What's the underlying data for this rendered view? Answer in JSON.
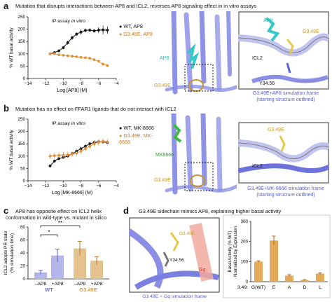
{
  "panels": {
    "a": {
      "label": "a",
      "title": "Mutation that disrupts interactions between AP8 and ICL2, reverses AP8 signaling effect in in vitro assays",
      "assay": "IP assay in vitro",
      "legend": [
        "WT, AP8",
        "G3.49E, AP8"
      ],
      "struct_labels": [
        "AP8",
        "G3.49E",
        "AP8",
        "G3.49E",
        "ICL2",
        "Y34.56"
      ],
      "sim_caption_1": "G3.49E+AP8 simulation frame",
      "sim_caption_2": "(starting structure outlined)"
    },
    "b": {
      "label": "b",
      "title": "Mutation has no effect on FFAR1 ligands that do not interact with ICL2",
      "assay": "IP assay in vitro",
      "legend": [
        "WT, MK-8666",
        "G3.49E, MK-8666"
      ],
      "struct_labels": [
        "MK8666",
        "G3.49E",
        "G3.49E",
        "ICL2"
      ],
      "sim_caption_1": "G3.49E+MK-8666 simulation frame",
      "sim_caption_2": "(starting structure outlined)"
    },
    "c": {
      "label": "c",
      "title_1": "AP8 has opposite effect on ICL2 helix",
      "title_2": "conformation in wild-type vs. mutant in silico",
      "sig": [
        "*",
        "**"
      ]
    },
    "d": {
      "label": "d",
      "title": "G3.49E sidechain mimics AP8, explaining higher basal activity",
      "struct_labels": [
        "G3.49E",
        "Y34.56",
        "Gq"
      ],
      "sim_caption": "G3.49E + Gq simulation frame"
    }
  },
  "chart_data": [
    {
      "type": "line",
      "id": "a",
      "xlabel": "Log [AP8] (M)",
      "ylabel": "% WT basal activity",
      "xlim": [
        -14,
        -4
      ],
      "ylim": [
        0,
        250
      ],
      "xticks": [
        -14,
        -12,
        -10,
        -8,
        -6,
        -4
      ],
      "yticks": [
        0,
        50,
        100,
        150,
        200,
        250
      ],
      "series": [
        {
          "name": "WT, AP8",
          "color": "#111111",
          "x": [
            -11.5,
            -11,
            -10.5,
            -10,
            -9.5,
            -9,
            -8.5,
            -8,
            -7.5,
            -7,
            -6.5,
            -6,
            -5.5,
            -5
          ],
          "y": [
            100,
            105,
            112,
            125,
            145,
            165,
            180,
            188,
            195,
            196,
            193,
            196,
            197,
            196
          ],
          "err": [
            4,
            5,
            5,
            6,
            8,
            8,
            7,
            10,
            8,
            7,
            7,
            12,
            18,
            15
          ]
        },
        {
          "name": "G3.49E, AP8",
          "color": "#e0913c",
          "x": [
            -11.5,
            -11,
            -10.5,
            -10,
            -9.5,
            -9,
            -8.5,
            -8,
            -7.5,
            -7,
            -6.5,
            -6,
            -5.5,
            -5
          ],
          "y": [
            100,
            101,
            96,
            94,
            92,
            90,
            88,
            86,
            84,
            82,
            76,
            70,
            58,
            52
          ],
          "err": [
            2,
            3,
            2,
            3,
            3,
            3,
            3,
            3,
            4,
            3,
            3,
            4,
            5,
            4
          ]
        }
      ]
    },
    {
      "type": "line",
      "id": "b",
      "xlabel": "Log [MK-8666] (M)",
      "ylabel": "% WT basal activity",
      "xlim": [
        -14,
        -4
      ],
      "ylim": [
        0,
        250
      ],
      "xticks": [
        -14,
        -12,
        -10,
        -8,
        -6,
        -4
      ],
      "yticks": [
        0,
        50,
        100,
        150,
        200,
        250
      ],
      "series": [
        {
          "name": "WT, MK-8666",
          "color": "#111111",
          "x": [
            -11.5,
            -11,
            -10.5,
            -10,
            -9.5,
            -9,
            -8.5,
            -8,
            -7.5,
            -7,
            -6.5,
            -6,
            -5.5,
            -5
          ],
          "y": [
            60,
            80,
            90,
            95,
            100,
            110,
            120,
            130,
            140,
            150,
            155,
            158,
            158,
            155
          ],
          "err": [
            5,
            6,
            6,
            6,
            6,
            7,
            7,
            8,
            8,
            8,
            8,
            9,
            9,
            8
          ]
        },
        {
          "name": "G3.49E, MK-8666",
          "color": "#e0913c",
          "x": [
            -11.5,
            -11,
            -10.5,
            -10,
            -9.5,
            -9,
            -8.5,
            -8,
            -7.5,
            -7,
            -6.5,
            -6,
            -5.5,
            -5
          ],
          "y": [
            100,
            102,
            103,
            104,
            105,
            108,
            112,
            120,
            130,
            140,
            150,
            156,
            160,
            158
          ],
          "err": [
            12,
            12,
            12,
            12,
            12,
            12,
            12,
            12,
            12,
            12,
            12,
            12,
            12,
            12
          ]
        }
      ]
    },
    {
      "type": "bar",
      "id": "c",
      "ylabel_1": "ICL2 adopts PR state",
      "ylabel_2": "(% simulation time)",
      "categories": [
        "–AP8",
        "+AP8",
        "–AP8",
        "+AP8"
      ],
      "groups": [
        "WT",
        "G3.49E"
      ],
      "group_colors": [
        "#6b6fd4",
        "#d69c45"
      ],
      "values": [
        10,
        36,
        47,
        28
      ],
      "err": [
        3,
        10,
        11,
        6
      ],
      "colors": [
        "#b4b6ea",
        "#b4b6ea",
        "#e3c28e",
        "#e3c28e"
      ],
      "ylim": [
        0,
        80
      ],
      "yticks": [
        0,
        20,
        40,
        60,
        80
      ]
    },
    {
      "type": "bar",
      "id": "d",
      "ylabel_1": "Basal Activity (% WT)",
      "ylabel_2": "Normalized by Expression",
      "xprefix": "3.49:",
      "categories": [
        "G(WT)",
        "E",
        "A",
        "D",
        "L"
      ],
      "values": [
        100,
        205,
        30,
        8,
        40
      ],
      "err": [
        4,
        22,
        5,
        2,
        4
      ],
      "color": "#e3aa5a",
      "ylim": [
        0,
        300
      ],
      "yticks": [
        0,
        100,
        200,
        300
      ]
    }
  ]
}
